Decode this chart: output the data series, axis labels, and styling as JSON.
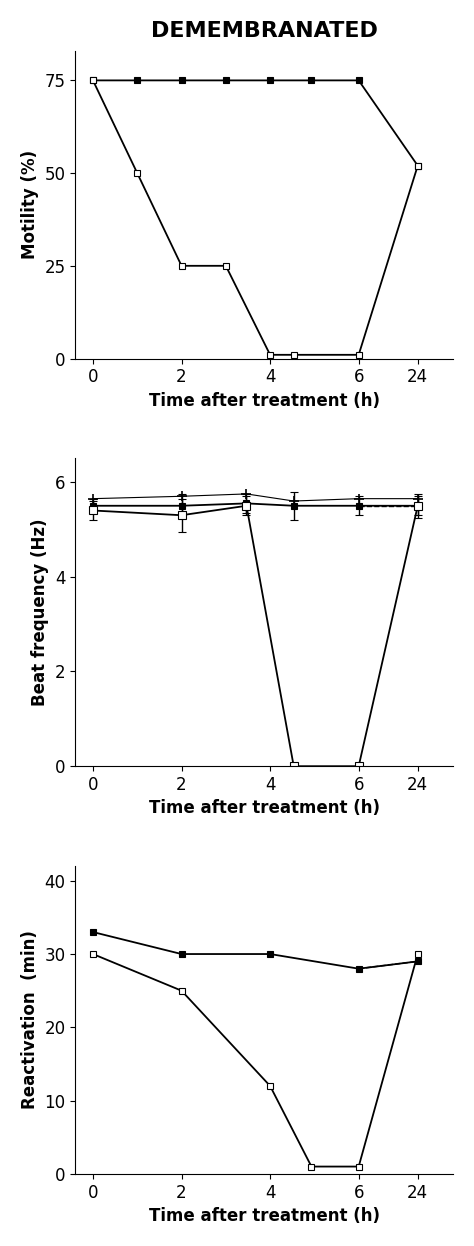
{
  "title": "DEMEMBRANATED",
  "panel1": {
    "ylabel": "Motility (%)",
    "xlabel": "Time after treatment (h)",
    "ylim": [
      0,
      83
    ],
    "yticks": [
      0,
      25,
      50,
      75
    ],
    "line_control": {
      "t": [
        0,
        1,
        2,
        3,
        4,
        5,
        6,
        24
      ],
      "y": [
        75,
        75,
        75,
        75,
        75,
        75,
        75,
        52
      ]
    },
    "line_treated": {
      "t": [
        0,
        1,
        2,
        3,
        4,
        4.5,
        6,
        24
      ],
      "y": [
        75,
        50,
        25,
        25,
        1,
        1,
        1,
        52
      ]
    }
  },
  "panel2": {
    "ylabel": "Beat frequency (Hz)",
    "xlabel": "Time after treatment (h)",
    "ylim": [
      0,
      6.5
    ],
    "yticks": [
      0,
      2,
      4,
      6
    ],
    "line_control": {
      "t": [
        0,
        2,
        3.5,
        4.5,
        6,
        24
      ],
      "y": [
        5.5,
        5.5,
        5.55,
        5.5,
        5.5,
        5.5
      ],
      "yerr": [
        0.15,
        0.25,
        0.2,
        0.3,
        0.2,
        0.25
      ]
    },
    "line_treated": {
      "t": [
        0,
        2,
        3.5,
        4.5,
        6,
        24
      ],
      "y": [
        5.4,
        5.3,
        5.5,
        0.0,
        0.0,
        5.5
      ],
      "yerr": [
        0.2,
        0.35,
        0.2,
        0.0,
        0.0,
        0.2
      ]
    },
    "line_upper": {
      "t": [
        0,
        2,
        3.5,
        4.5,
        6,
        24
      ],
      "y": [
        5.65,
        5.7,
        5.75,
        5.6,
        5.65,
        5.65
      ]
    }
  },
  "panel3": {
    "ylabel": "Reactivation  (min)",
    "xlabel": "Time after treatment (h)",
    "ylim": [
      0,
      42
    ],
    "yticks": [
      0,
      10,
      20,
      30,
      40
    ],
    "line_control": {
      "t": [
        0,
        2,
        4,
        6,
        24
      ],
      "y": [
        33,
        30,
        30,
        28,
        29
      ]
    },
    "line_treated": {
      "t": [
        0,
        2,
        4,
        5,
        6,
        24
      ],
      "y": [
        30,
        25,
        12,
        1,
        1,
        30
      ]
    }
  },
  "xmap": {
    "0": 0,
    "1": 0.75,
    "2": 1.5,
    "3": 2.25,
    "3.5": 2.6,
    "4": 3.0,
    "4.5": 3.4,
    "5": 3.7,
    "6": 4.5,
    "24": 5.5
  },
  "xtick_pos": [
    0,
    1.5,
    3.0,
    4.5,
    5.5
  ],
  "xtick_labels": [
    "0",
    "2",
    "4",
    "6",
    "24"
  ],
  "xlim": [
    -0.3,
    6.1
  ]
}
